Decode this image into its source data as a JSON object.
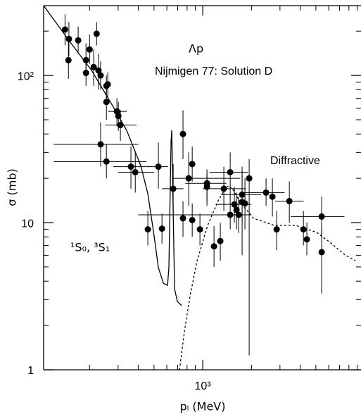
{
  "chart_data": {
    "type": "scatter",
    "x_label": "pₗ (MeV)",
    "y_label": "σ (mb)",
    "annotations": [
      "Λp",
      "Nijmigen 77: Solution D",
      "Diffractive",
      "¹S₀, ³S₁"
    ],
    "log_x": true,
    "log_y": true,
    "xlim": [
      104,
      9500
    ],
    "ylim": [
      1,
      298
    ],
    "xticks": [
      {
        "value": 1000,
        "label": "10³"
      }
    ],
    "yticks": [
      1,
      10,
      {
        "value": 100,
        "label": "10²"
      }
    ],
    "xminorticks": [
      200,
      300,
      400,
      500,
      600,
      700,
      800,
      900,
      2000,
      3000,
      4000,
      5000,
      6000,
      7000,
      8000,
      9000
    ],
    "yminorticks": [
      2,
      3,
      4,
      5,
      6,
      7,
      8,
      9,
      20,
      30,
      40,
      50,
      60,
      70,
      80,
      90,
      200
    ],
    "color": "#000000",
    "x": [
      141,
      149,
      170,
      148,
      190,
      200,
      190,
      212,
      221,
      227,
      234,
      254,
      259,
      254,
      295,
      301,
      310,
      234,
      254,
      360,
      383,
      532,
      458,
      560,
      657,
      755,
      755,
      819,
      861,
      861,
      961,
      1062,
      1062,
      1174,
      1284,
      1350,
      1478,
      1478,
      1569,
      1617,
      1666,
      1751,
      1751,
      1823,
      1936,
      2461,
      2694,
      2862,
      3428,
      4188,
      4397,
      5430,
      5430
    ],
    "values": [
      205,
      177,
      173,
      127,
      127,
      150,
      104,
      114,
      192,
      108,
      100,
      85,
      87,
      66,
      57,
      53,
      46,
      34,
      26,
      24,
      22,
      24,
      9,
      9.1,
      17,
      40,
      10.7,
      20,
      25,
      10.4,
      9,
      18.5,
      17.5,
      6.9,
      7.5,
      17,
      22,
      11.3,
      13.3,
      12.2,
      11.3,
      15.5,
      13.8,
      13.5,
      20,
      16,
      15,
      9,
      14,
      9,
      7.7,
      11,
      6.3
    ],
    "y_low": [
      160,
      135,
      140,
      95,
      100,
      120,
      85,
      85,
      160,
      80,
      80,
      70,
      70,
      50,
      45,
      42,
      36,
      24,
      20,
      17,
      16,
      17,
      7,
      7.2,
      12,
      27,
      8,
      13,
      19,
      8,
      7,
      14,
      13,
      5,
      5.5,
      12,
      14,
      9,
      10,
      9,
      8.5,
      10,
      6,
      9,
      1.25,
      13,
      11,
      6.5,
      10,
      7,
      6,
      8,
      3.3
    ],
    "y_high": [
      260,
      230,
      215,
      170,
      165,
      190,
      130,
      150,
      230,
      140,
      125,
      100,
      105,
      85,
      70,
      66,
      58,
      48,
      34,
      33,
      30,
      35,
      12,
      11.5,
      25,
      58,
      14,
      30,
      33,
      13.5,
      11.5,
      23,
      22,
      9.5,
      10,
      24,
      30,
      14,
      17.5,
      16,
      15,
      24,
      22,
      20,
      27,
      20,
      20,
      12,
      19,
      12,
      10,
      15,
      9.5
    ],
    "x_low": [
      null,
      null,
      null,
      null,
      null,
      null,
      null,
      null,
      null,
      null,
      null,
      null,
      null,
      null,
      260,
      null,
      250,
      120,
      120,
      280,
      300,
      460,
      null,
      null,
      560,
      null,
      null,
      660,
      null,
      null,
      null,
      780,
      null,
      null,
      null,
      1000,
      1100,
      400,
      1200,
      null,
      null,
      1300,
      null,
      null,
      null,
      1800,
      null,
      null,
      2800,
      null,
      null,
      3500,
      null
    ],
    "x_high": [
      null,
      null,
      null,
      null,
      null,
      null,
      null,
      null,
      null,
      null,
      null,
      null,
      null,
      null,
      340,
      null,
      390,
      400,
      450,
      470,
      500,
      610,
      null,
      null,
      760,
      null,
      null,
      1700,
      null,
      null,
      null,
      1400,
      null,
      null,
      null,
      1850,
      1900,
      2000,
      2000,
      null,
      null,
      2300,
      null,
      null,
      null,
      3200,
      null,
      null,
      4200,
      null,
      null,
      7500,
      null
    ],
    "curves": [
      {
        "style": "solid",
        "x": [
          104,
          152,
          206,
          277,
          339,
          414,
          458,
          497,
          532,
          571,
          606,
          618,
          637,
          644,
          657,
          670,
          697,
          741
        ],
        "values": [
          298,
          168,
          108,
          62.3,
          42.4,
          24.4,
          15.7,
          8.57,
          4.94,
          3.88,
          3.75,
          4.94,
          35.9,
          42.4,
          11.9,
          3.55,
          2.91,
          2.73
        ]
      },
      {
        "style": "dashed",
        "x": [
          719,
          771,
          835,
          923,
          1073,
          1246,
          1378,
          1448,
          1523,
          1683,
          2055,
          2774,
          3748,
          5061,
          6188,
          7558,
          8772
        ],
        "values": [
          1,
          1.83,
          3.18,
          5.52,
          9.57,
          14.1,
          17,
          17.9,
          17,
          14.1,
          10.7,
          9.57,
          9.57,
          8.57,
          7.26,
          6.03,
          5.52
        ]
      }
    ]
  }
}
